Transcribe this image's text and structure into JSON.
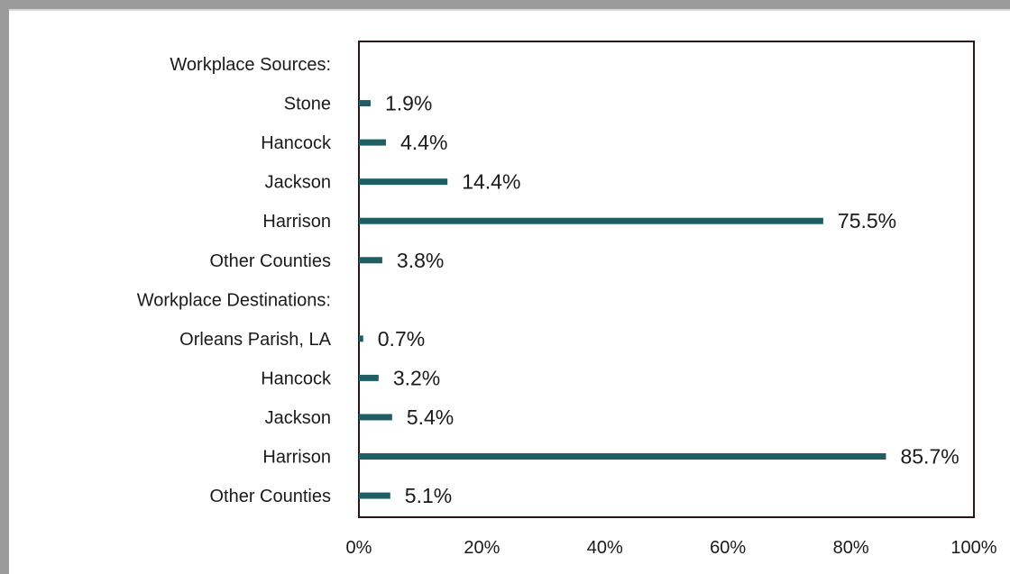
{
  "chart_data": {
    "type": "bar",
    "orientation": "horizontal",
    "rows": [
      {
        "label": "Workplace Sources:",
        "header": true
      },
      {
        "label": "Stone",
        "value": 1.9,
        "data_label": "1.9%"
      },
      {
        "label": "Hancock",
        "value": 4.4,
        "data_label": "4.4%"
      },
      {
        "label": "Jackson",
        "value": 14.4,
        "data_label": "14.4%"
      },
      {
        "label": "Harrison",
        "value": 75.5,
        "data_label": "75.5%"
      },
      {
        "label": "Other Counties",
        "value": 3.8,
        "data_label": "3.8%"
      },
      {
        "label": "Workplace Destinations:",
        "header": true
      },
      {
        "label": "Orleans Parish, LA",
        "value": 0.7,
        "data_label": "0.7%"
      },
      {
        "label": "Hancock",
        "value": 3.2,
        "data_label": "3.2%"
      },
      {
        "label": "Jackson",
        "value": 5.4,
        "data_label": "5.4%"
      },
      {
        "label": "Harrison",
        "value": 85.7,
        "data_label": "85.7%"
      },
      {
        "label": "Other Counties",
        "value": 5.1,
        "data_label": "5.1%"
      }
    ],
    "xlim": [
      0,
      100
    ],
    "x_ticks": [
      "0%",
      "20%",
      "40%",
      "60%",
      "80%",
      "100%"
    ],
    "grid": false,
    "legend": "none",
    "bar_color": "#1f5f63",
    "axis_color": "#2b1616"
  }
}
